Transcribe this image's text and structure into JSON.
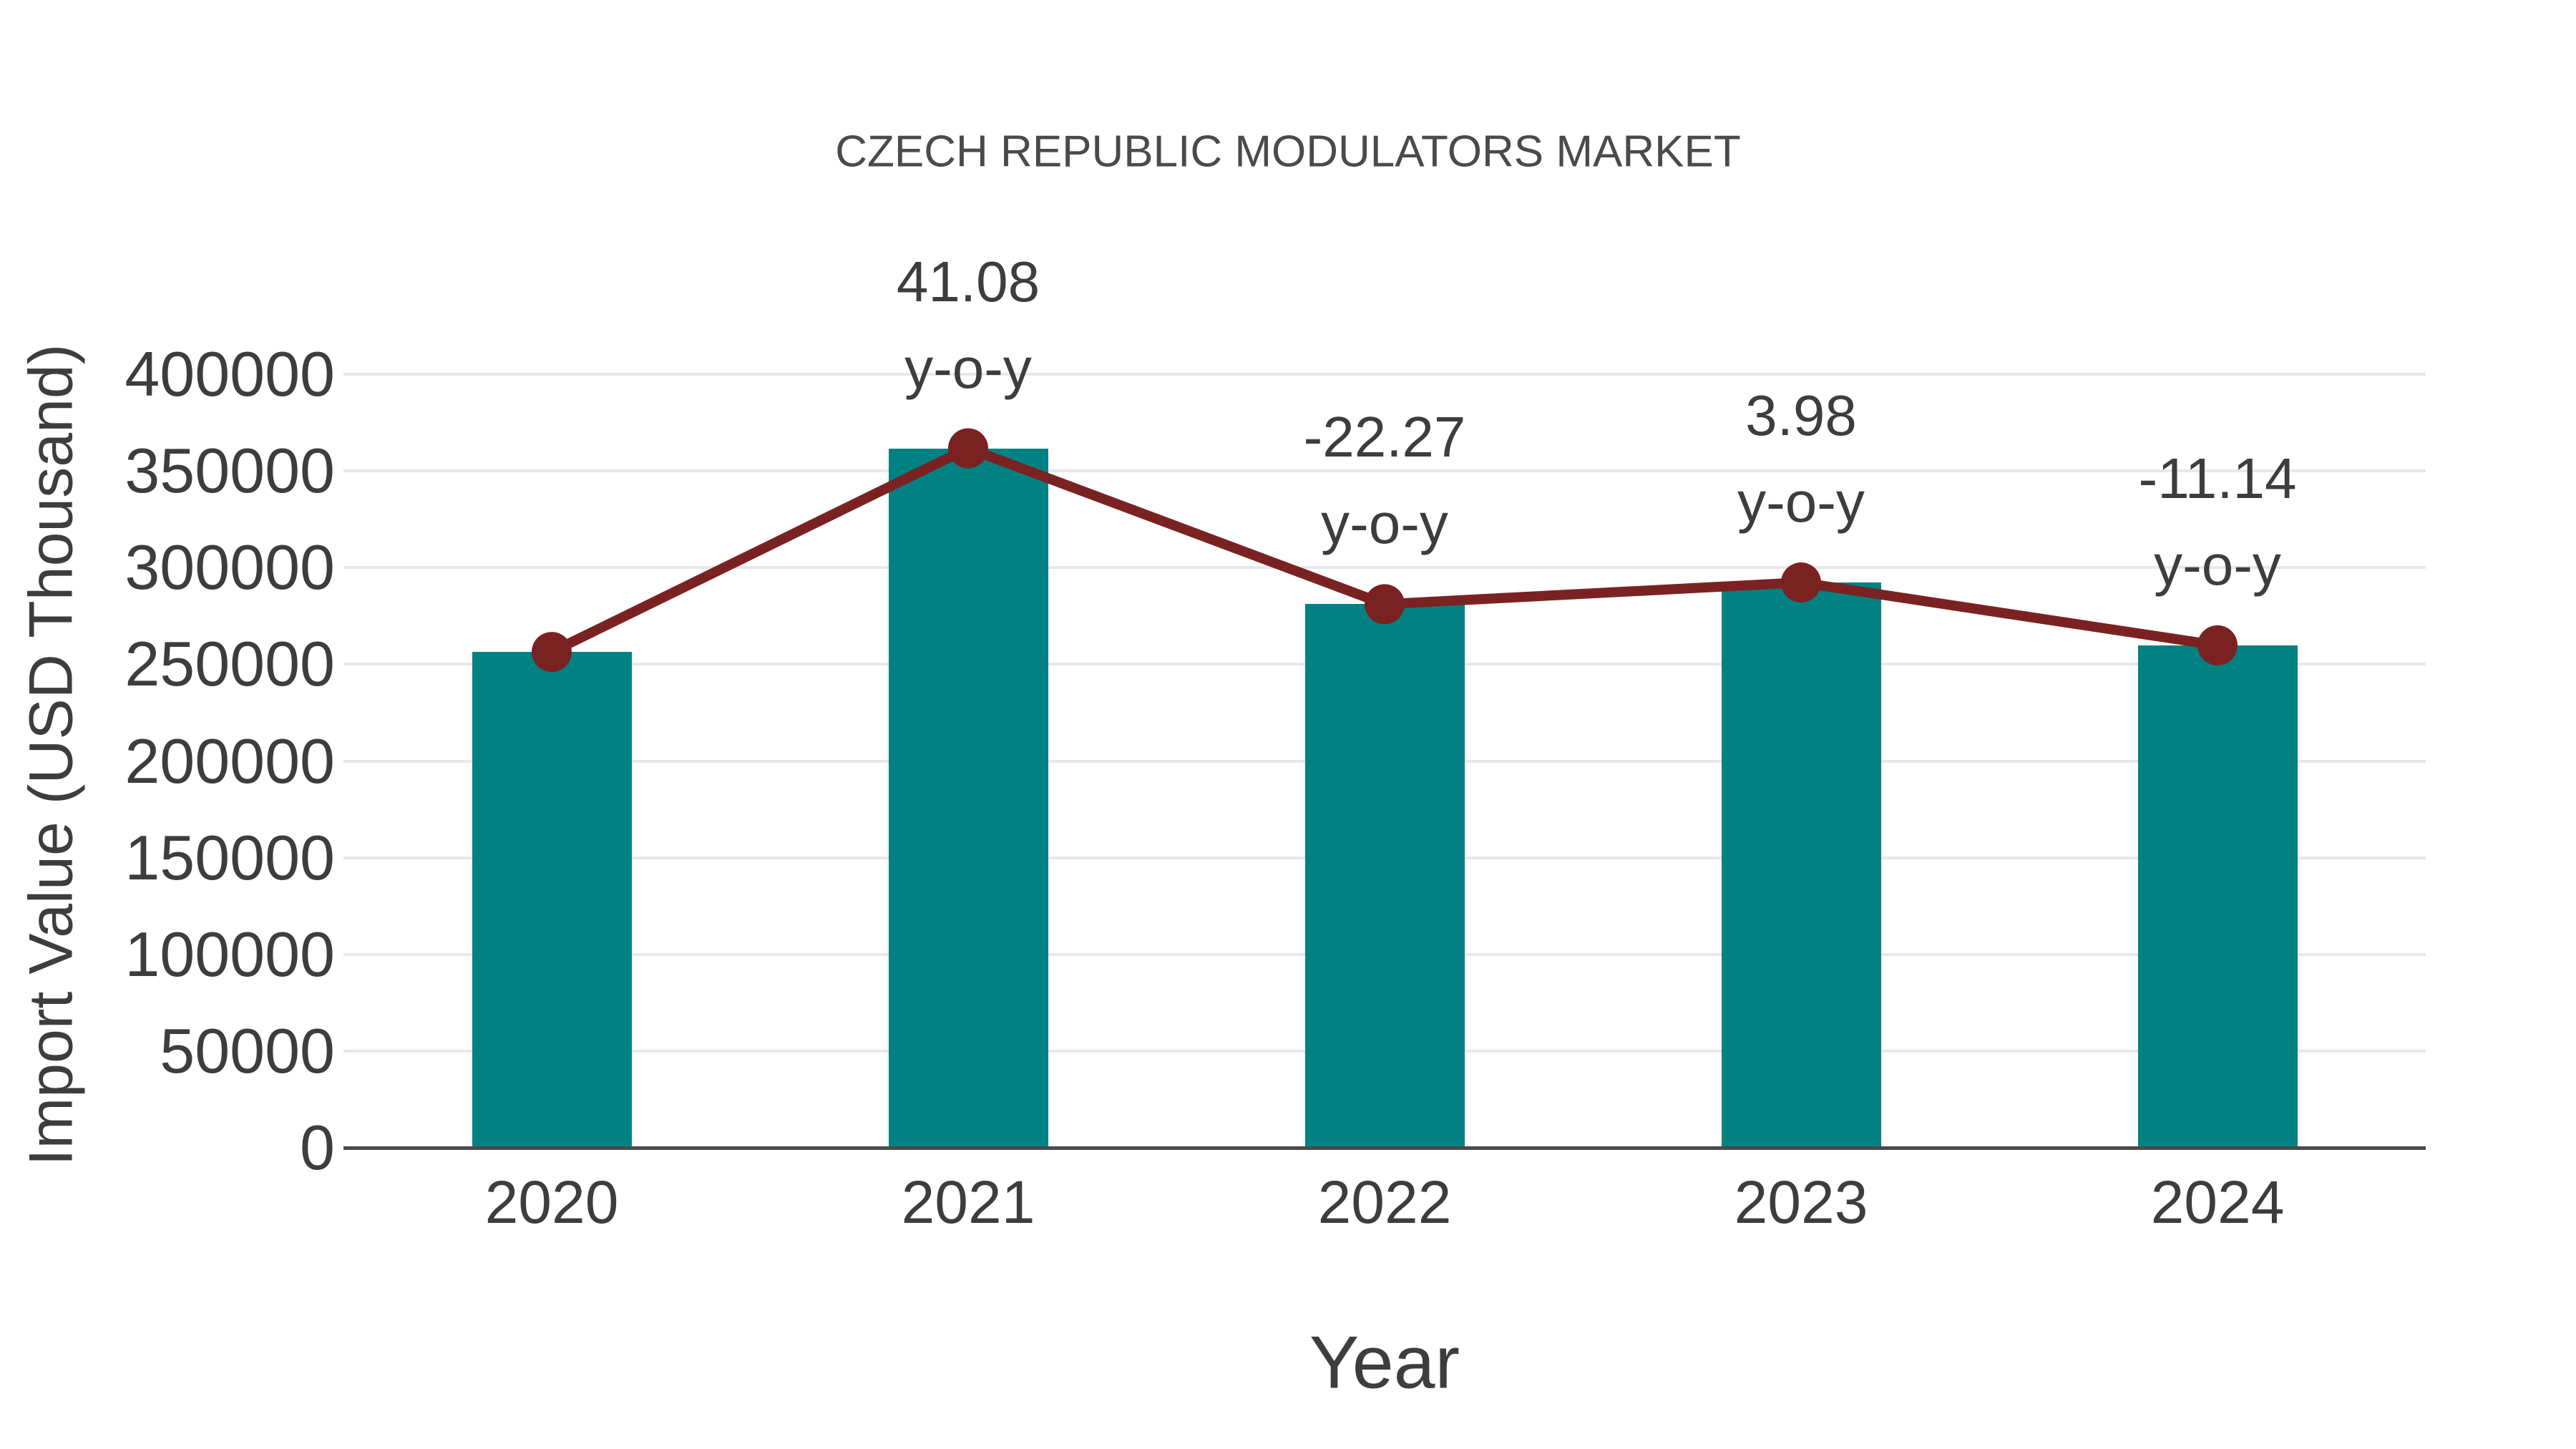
{
  "title": "CZECH REPUBLIC MODULATORS MARKET",
  "x_axis_title": "Year",
  "y_axis_title": "Import Value (USD Thousand)",
  "colors": {
    "bar": "#018181",
    "line": "#7A2222",
    "marker": "#7A2222",
    "grid": "#e8e8e8",
    "axis": "#4a4a4a",
    "text": "#3d3d3d",
    "title_text": "#4a4a4a",
    "background": "#ffffff"
  },
  "chart_data": {
    "type": "bar",
    "title": "CZECH REPUBLIC MODULATORS MARKET",
    "xlabel": "Year",
    "ylabel": "Import Value (USD Thousand)",
    "categories": [
      "2020",
      "2021",
      "2022",
      "2023",
      "2024"
    ],
    "series": [
      {
        "name": "Import Value (USD Thousand)",
        "type": "bar",
        "color": "#018181",
        "values": [
          256400,
          361700,
          281100,
          292300,
          259800
        ]
      },
      {
        "name": "y-o-y change (%), line plotted at import-value heights",
        "type": "line",
        "color": "#7A2222",
        "values": [
          256400,
          361700,
          281100,
          292300,
          259800
        ],
        "yoy_percent": [
          null,
          41.08,
          -22.27,
          3.98,
          -11.14
        ]
      }
    ],
    "annotations": [
      {
        "category": "2021",
        "line1": "41.08",
        "line2": "y-o-y"
      },
      {
        "category": "2022",
        "line1": "-22.27",
        "line2": "y-o-y"
      },
      {
        "category": "2023",
        "line1": "3.98",
        "line2": "y-o-y"
      },
      {
        "category": "2024",
        "line1": "-11.14",
        "line2": "y-o-y"
      }
    ],
    "yticks": [
      0,
      50000,
      100000,
      150000,
      200000,
      250000,
      300000,
      350000,
      400000
    ],
    "ytick_labels": [
      "0",
      "50000",
      "100000",
      "150000",
      "200000",
      "250000",
      "300000",
      "350000",
      "400000"
    ],
    "ylim": [
      0,
      400000
    ],
    "grid": "horizontal",
    "legend_position": "none"
  }
}
